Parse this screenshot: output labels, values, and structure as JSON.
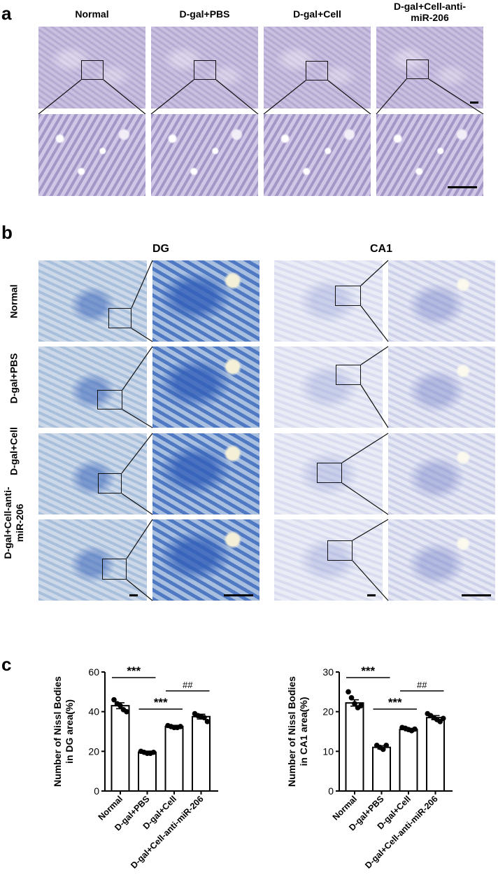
{
  "panel_labels": {
    "a": "a",
    "b": "b",
    "c": "c"
  },
  "panel_a": {
    "columns": [
      "Normal",
      "D-gal+PBS",
      "D-gal+Cell",
      "D-gal+Cell-anti-\nmiR-206"
    ]
  },
  "panel_b": {
    "regions": [
      "DG",
      "CA1"
    ],
    "rows": [
      "Normal",
      "D-gal+PBS",
      "D-gal+Cell",
      "D-gal+Cell-anti-\nmiR-206"
    ]
  },
  "colors": {
    "bar_fill": "#ffffff",
    "bar_stroke": "#000000",
    "point": "#000000"
  },
  "chart_data": [
    {
      "type": "bar",
      "categories": [
        "Normal",
        "D-gal+PBS",
        "D-gal+Cell",
        "D-gal+Cell-anti-miR-206"
      ],
      "values": [
        43,
        19.5,
        32.5,
        37.5
      ],
      "errors": [
        1.5,
        0.6,
        0.6,
        1.2
      ],
      "points": [
        [
          46,
          44,
          43,
          41,
          40
        ],
        [
          20,
          19.5,
          19,
          19,
          19.5
        ],
        [
          33,
          32.5,
          32,
          32,
          32.5
        ],
        [
          39,
          38,
          37.5,
          37,
          35
        ]
      ],
      "ylabel": "Number of Nissl Bodies\nin DG area(%)",
      "ylim": [
        0,
        60
      ],
      "yticks": [
        0,
        20,
        40,
        60
      ],
      "annotations": [
        {
          "text": "***",
          "from": 0,
          "to": 1
        },
        {
          "text": "***",
          "from": 1,
          "to": 2
        },
        {
          "text": "##",
          "from": 2,
          "to": 3
        }
      ]
    },
    {
      "type": "bar",
      "categories": [
        "Normal",
        "D-gal+PBS",
        "D-gal+Cell",
        "D-gal+Cell-anti-miR-206"
      ],
      "values": [
        22.2,
        11,
        15.5,
        18.5
      ],
      "errors": [
        0.8,
        0.4,
        0.3,
        0.5
      ],
      "points": [
        [
          25,
          23.5,
          22,
          21,
          21.5
        ],
        [
          11.5,
          11,
          10.5,
          11.5
        ],
        [
          16,
          15.8,
          15.5,
          15.2,
          15.6
        ],
        [
          19.5,
          19,
          18.5,
          18,
          17.5,
          18.3
        ]
      ],
      "ylabel": "Number of Nissl Bodies\nin CA1 area(%)",
      "ylim": [
        0,
        30
      ],
      "yticks": [
        0,
        10,
        20,
        30
      ],
      "annotations": [
        {
          "text": "***",
          "from": 0,
          "to": 1
        },
        {
          "text": "***",
          "from": 1,
          "to": 2
        },
        {
          "text": "##",
          "from": 2,
          "to": 3
        }
      ]
    }
  ]
}
